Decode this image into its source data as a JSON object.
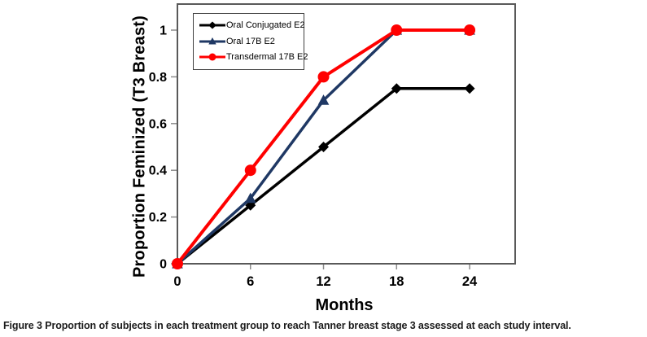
{
  "figure": {
    "caption_label": "Figure 3",
    "caption_text": "Proportion of subjects in each treatment group to reach Tanner breast stage 3 assessed at each study interval."
  },
  "chart_data": {
    "type": "line",
    "x": [
      0,
      6,
      12,
      18,
      24
    ],
    "x_tick_labels": [
      "0",
      "6",
      "12",
      "18",
      "24"
    ],
    "y_ticks": [
      0,
      0.2,
      0.4,
      0.6,
      0.8,
      1
    ],
    "y_tick_labels": [
      "0",
      "0.2",
      "0.4",
      "0.6",
      "0.8",
      "1"
    ],
    "series": [
      {
        "name": "Oral Conjugated E2",
        "marker": "diamond",
        "color": "#000000",
        "values": [
          0,
          0.25,
          0.5,
          0.75,
          0.75
        ]
      },
      {
        "name": "Oral 17B E2",
        "marker": "triangle",
        "color": "#1f3864",
        "values": [
          0,
          0.28,
          0.7,
          1.0,
          1.0
        ]
      },
      {
        "name": "Transdermal 17B E2",
        "marker": "circle",
        "color": "#ff0000",
        "values": [
          0,
          0.4,
          0.8,
          1.0,
          1.0
        ]
      }
    ],
    "xlabel": "Months",
    "ylabel": "Proportion Feminized (T3 Breast)",
    "xlim": [
      0,
      27.7
    ],
    "ylim": [
      0,
      1.11
    ],
    "grid": false,
    "legend_position": "top-left-inside",
    "frame_color": "#595959",
    "tick_color": "#8c8c8c",
    "tick_label_color": "#000000"
  }
}
